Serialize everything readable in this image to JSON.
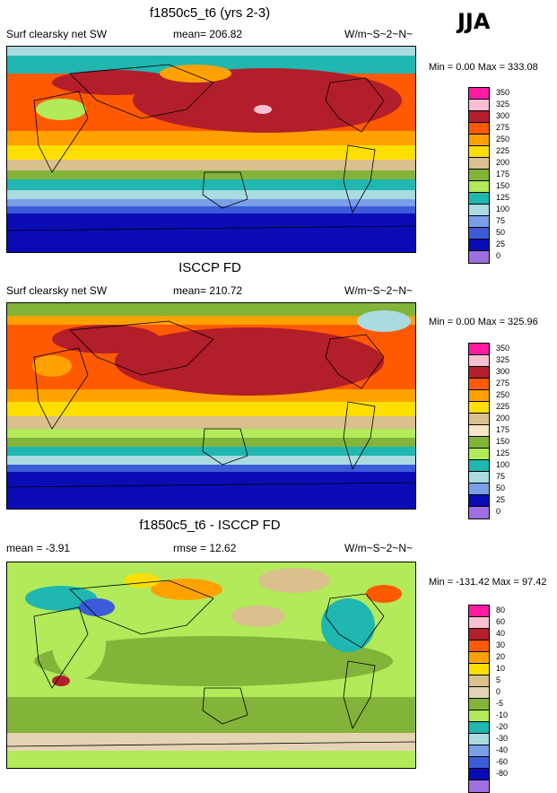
{
  "season": "JJA",
  "colors": {
    "abs": [
      "#9e6fe0",
      "#0a0bb5",
      "#3b5bd9",
      "#7a9fe8",
      "#a9dbe0",
      "#1fb7b0",
      "#b2ea5a",
      "#82b43a",
      "#d9c08c",
      "#fcdf00",
      "#ffa200",
      "#ff5a00",
      "#b31e2b",
      "#f8bfd2",
      "#ff1ba0"
    ],
    "diff": [
      "#9e6fe0",
      "#0a0bb5",
      "#3b5bd9",
      "#7a9fe8",
      "#a9dbe0",
      "#1fb7b0",
      "#b2ea5a",
      "#82b43a",
      "#e4d4b4",
      "#d9c08c",
      "#fcdf00",
      "#ffa200",
      "#ff5a00",
      "#b31e2b",
      "#f8bfd2",
      "#ff1ba0"
    ]
  },
  "panels": [
    {
      "title": "f1850c5_t6 (yrs 2-3)",
      "left_label": "Surf clearsky net SW",
      "center_label": "mean= 206.82",
      "units": "W/m~S~2~N~",
      "minmax": "Min =   0.00 Max = 333.08",
      "levels": [
        "350",
        "325",
        "300",
        "275",
        "250",
        "225",
        "200",
        "175",
        "150",
        "125",
        "100",
        "75",
        "50",
        "25",
        "0"
      ]
    },
    {
      "title": "ISCCP FD",
      "left_label": "Surf clearsky net SW",
      "center_label": "mean= 210.72",
      "units": "W/m~S~2~N~",
      "minmax": "Min =   0.00 Max = 325.96",
      "levels": [
        "350",
        "325",
        "300",
        "275",
        "250",
        "225",
        "200",
        "175",
        "150",
        "125",
        "100",
        "75",
        "50",
        "25",
        "0"
      ]
    },
    {
      "title": "f1850c5_t6 - ISCCP FD",
      "left_label": "mean =  -3.91",
      "center_label": "rmse =  12.62",
      "units": "W/m~S~2~N~",
      "minmax": "Min = -131.42 Max =  97.42",
      "levels": [
        "80",
        "60",
        "40",
        "30",
        "20",
        "10",
        "5",
        "0",
        "-5",
        "-10",
        "-20",
        "-30",
        "-40",
        "-60",
        "-80"
      ]
    }
  ]
}
